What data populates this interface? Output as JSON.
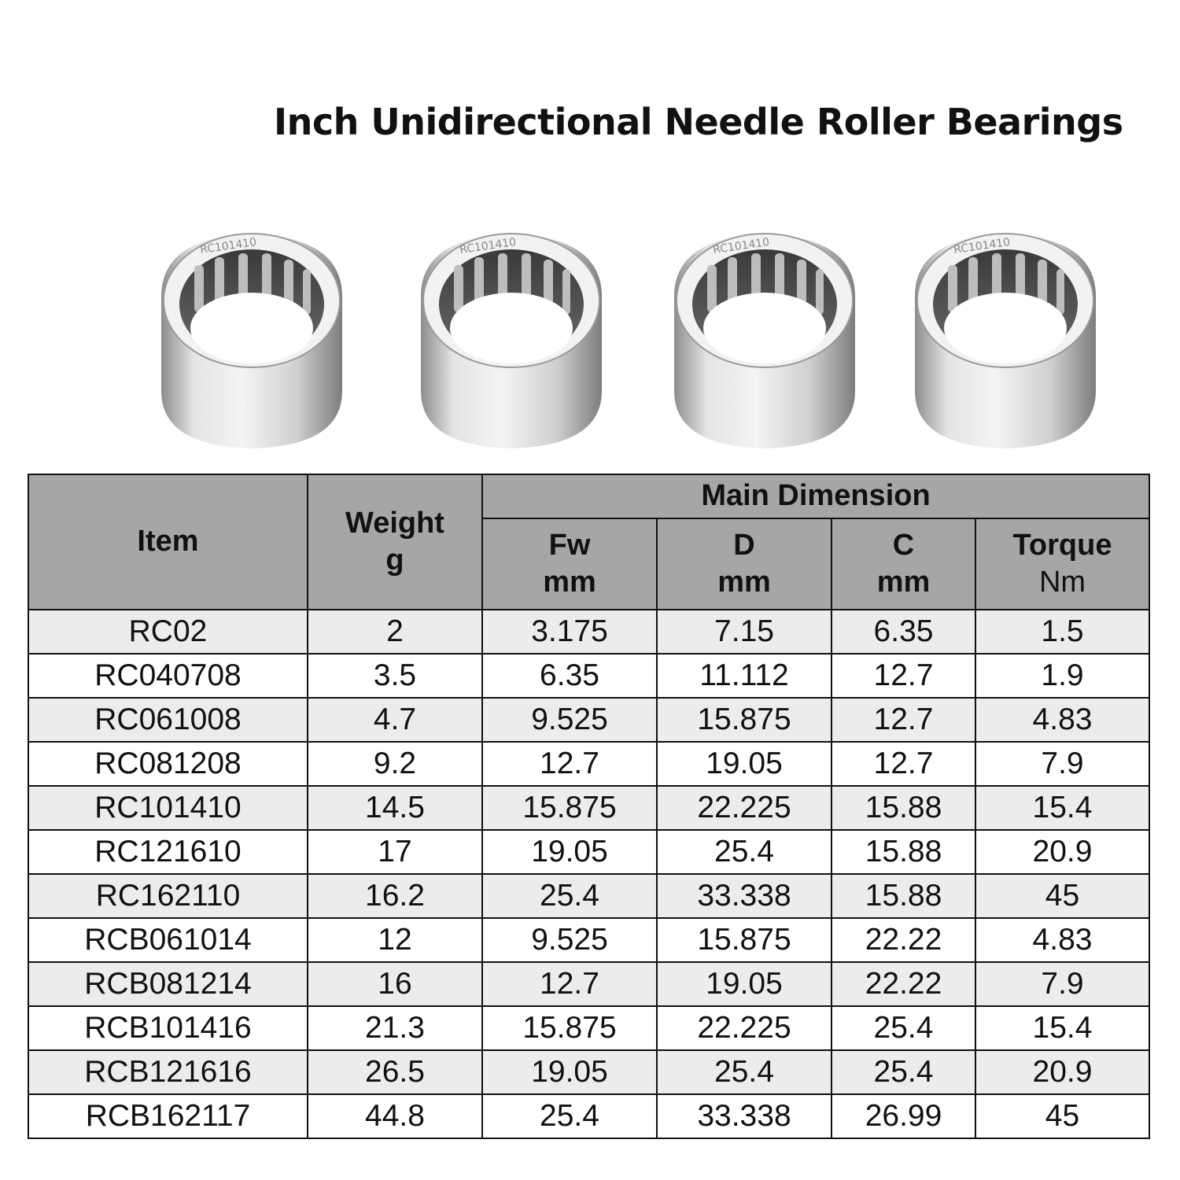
{
  "title": "Inch Unidirectional Needle Roller Bearings",
  "product_images": [
    {
      "marking": "RC101410"
    },
    {
      "marking": "RC101410"
    },
    {
      "marking": "RC101410"
    },
    {
      "marking": "RC101410"
    }
  ],
  "table": {
    "headers": {
      "item": "Item",
      "weight": "Weight",
      "weight_unit": "g",
      "group": "Main Dimension",
      "fw": "Fw",
      "fw_unit": "mm",
      "d": "D",
      "d_unit": "mm",
      "c": "C",
      "c_unit": "mm",
      "torque": "Torque",
      "torque_unit": "Nm"
    },
    "rows": [
      {
        "item": "RC02",
        "weight": "2",
        "fw": "3.175",
        "d": "7.15",
        "c": "6.35",
        "torque": "1.5"
      },
      {
        "item": "RC040708",
        "weight": "3.5",
        "fw": "6.35",
        "d": "11.112",
        "c": "12.7",
        "torque": "1.9"
      },
      {
        "item": "RC061008",
        "weight": "4.7",
        "fw": "9.525",
        "d": "15.875",
        "c": "12.7",
        "torque": "4.83"
      },
      {
        "item": "RC081208",
        "weight": "9.2",
        "fw": "12.7",
        "d": "19.05",
        "c": "12.7",
        "torque": "7.9"
      },
      {
        "item": "RC101410",
        "weight": "14.5",
        "fw": "15.875",
        "d": "22.225",
        "c": "15.88",
        "torque": "15.4"
      },
      {
        "item": "RC121610",
        "weight": "17",
        "fw": "19.05",
        "d": "25.4",
        "c": "15.88",
        "torque": "20.9"
      },
      {
        "item": "RC162110",
        "weight": "16.2",
        "fw": "25.4",
        "d": "33.338",
        "c": "15.88",
        "torque": "45"
      },
      {
        "item": "RCB061014",
        "weight": "12",
        "fw": "9.525",
        "d": "15.875",
        "c": "22.22",
        "torque": "4.83"
      },
      {
        "item": "RCB081214",
        "weight": "16",
        "fw": "12.7",
        "d": "19.05",
        "c": "22.22",
        "torque": "7.9"
      },
      {
        "item": "RCB101416",
        "weight": "21.3",
        "fw": "15.875",
        "d": "22.225",
        "c": "25.4",
        "torque": "15.4"
      },
      {
        "item": "RCB121616",
        "weight": "26.5",
        "fw": "19.05",
        "d": "25.4",
        "c": "25.4",
        "torque": "20.9"
      },
      {
        "item": "RCB162117",
        "weight": "44.8",
        "fw": "25.4",
        "d": "33.338",
        "c": "26.99",
        "torque": "45"
      }
    ]
  },
  "colors": {
    "header_bg": "#a6a6a6",
    "row_alt_bg": "#ececec",
    "row_bg": "#ffffff",
    "border": "#111111"
  }
}
